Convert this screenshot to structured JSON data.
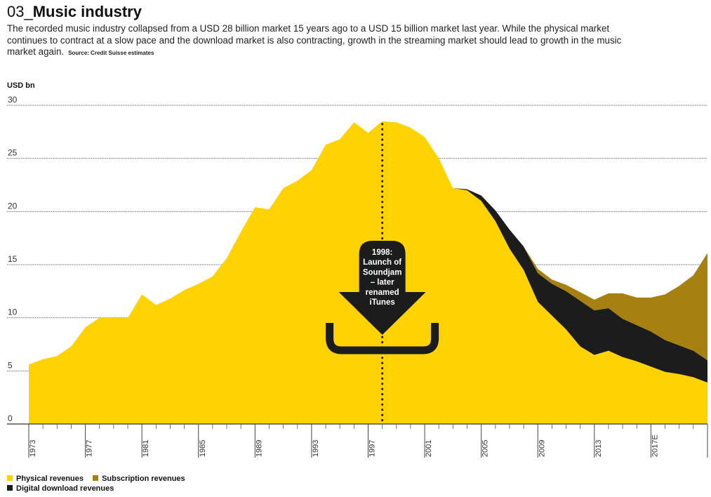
{
  "header": {
    "number": "03_",
    "title": "Music industry",
    "description": "The recorded music industry collapsed from a USD 28 billion market 15 years ago to a USD 15 billion market last year. While the physical market continues to contract at a slow pace and the download market is also contracting, growth in the streaming market should lead to growth in the music market again.",
    "source": "Source: Credit Suisse estimates"
  },
  "chart_data": {
    "type": "area",
    "stacked": true,
    "title": "Music industry",
    "xlabel": "",
    "ylabel": "USD bn",
    "ylim": [
      0,
      30
    ],
    "yticks": [
      0,
      5,
      10,
      15,
      20,
      25,
      30
    ],
    "grid": true,
    "x": [
      1973,
      1974,
      1975,
      1976,
      1977,
      1978,
      1979,
      1980,
      1981,
      1982,
      1983,
      1984,
      1985,
      1986,
      1987,
      1988,
      1989,
      1990,
      1991,
      1992,
      1993,
      1994,
      1995,
      1996,
      1997,
      1998,
      1999,
      2000,
      2001,
      2002,
      2003,
      2004,
      2005,
      2006,
      2007,
      2008,
      2009,
      2010,
      2011,
      2012,
      2013,
      2014,
      2015,
      2016,
      2017,
      2018,
      2019,
      2020,
      2021
    ],
    "xtick_labels": [
      "1973",
      "1977",
      "1981",
      "1985",
      "1989",
      "1993",
      "1997",
      "2001",
      "2005",
      "2009",
      "2013",
      "2017E"
    ],
    "series": [
      {
        "name": "Physical revenues",
        "color": "#FFD200",
        "values": [
          5.6,
          6.1,
          6.4,
          7.3,
          9.1,
          10.0,
          10.0,
          10.0,
          12.2,
          11.2,
          11.8,
          12.6,
          13.2,
          13.9,
          15.6,
          18.1,
          20.4,
          20.2,
          22.2,
          22.9,
          23.9,
          26.3,
          26.8,
          28.4,
          27.4,
          28.5,
          28.4,
          27.9,
          27.0,
          25.0,
          22.2,
          22.0,
          21.0,
          19.1,
          16.5,
          14.5,
          11.5,
          10.2,
          8.9,
          7.3,
          6.5,
          6.9,
          6.3,
          5.9,
          5.4,
          4.9,
          4.7,
          4.4,
          3.9
        ]
      },
      {
        "name": "Digital download revenues",
        "color": "#1C1C1C",
        "values": [
          0,
          0,
          0,
          0,
          0,
          0,
          0,
          0,
          0,
          0,
          0,
          0,
          0,
          0,
          0,
          0,
          0,
          0,
          0,
          0,
          0,
          0,
          0,
          0,
          0,
          0,
          0,
          0,
          0,
          0,
          0,
          0.1,
          0.5,
          1.0,
          1.8,
          2.2,
          2.7,
          3.0,
          3.6,
          4.3,
          4.2,
          4.0,
          3.6,
          3.4,
          3.3,
          3.0,
          2.7,
          2.5,
          2.1
        ]
      },
      {
        "name": "Subscription revenues",
        "color": "#A68010",
        "values": [
          0,
          0,
          0,
          0,
          0,
          0,
          0,
          0,
          0,
          0,
          0,
          0,
          0,
          0,
          0,
          0,
          0,
          0,
          0,
          0,
          0,
          0,
          0,
          0,
          0,
          0,
          0,
          0,
          0,
          0,
          0,
          0,
          0,
          0,
          0,
          0,
          0.4,
          0.4,
          0.6,
          0.8,
          1.0,
          1.4,
          2.4,
          2.6,
          3.2,
          4.3,
          5.6,
          7.1,
          10.1
        ]
      }
    ],
    "annotations": [
      {
        "x": 1998,
        "text": "1998: Launch of Soundjam – later renamed iTunes",
        "lines": [
          "1998:",
          "Launch of",
          "Soundjam",
          "– later",
          "renamed",
          "iTunes"
        ]
      }
    ],
    "legend": {
      "position": "bottom-left",
      "entries": [
        "Physical revenues",
        "Subscription revenues",
        "Digital download revenues"
      ]
    }
  }
}
